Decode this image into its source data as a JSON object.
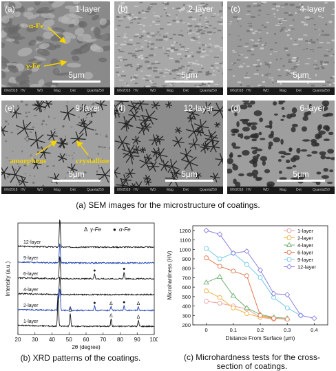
{
  "sem": {
    "panels": [
      {
        "tag": "(a)",
        "title": "1-layer",
        "scale": "5μm",
        "style": "cells"
      },
      {
        "tag": "(b)",
        "title": "2-layer",
        "scale": "5μm",
        "style": "fine"
      },
      {
        "tag": "(c)",
        "title": "4-layer",
        "scale": "5μm",
        "style": "smooth"
      },
      {
        "tag": "(e)",
        "title": "9-layer",
        "scale": "5μm",
        "style": "stars"
      },
      {
        "tag": "(f)",
        "title": "12-layer",
        "scale": "5μm",
        "style": "dendrite"
      },
      {
        "tag": "(d)",
        "title": "6-layer",
        "scale": "5μm",
        "style": "porous"
      }
    ],
    "annotations": {
      "alpha": "α-Fe",
      "gamma": "γ-Fe",
      "amorphous": "amorphous",
      "crystalline": "crystalline"
    },
    "infobar_text": [
      "0/6/2018",
      "HV",
      "WD",
      "Mag",
      "Det",
      "Quanta250"
    ],
    "caption": "(a) SEM images for the microstructure of coatings."
  },
  "captions": {
    "xrd": "(b) XRD patterns of the coatings.",
    "hv_line1": "(c) Microhardness tests for the cross-",
    "hv_line2": "section of coatings."
  },
  "chart_data": [
    {
      "type": "line",
      "xlabel": "2θ (degree)",
      "ylabel": "Intensity (a.u.)",
      "xlim": [
        20,
        100
      ],
      "xticks": [
        20,
        30,
        40,
        50,
        60,
        70,
        80,
        90,
        100
      ],
      "legend": [
        {
          "symbol": "Δ",
          "name": "γ-Fe"
        },
        {
          "symbol": "●",
          "name": "α-Fe"
        }
      ],
      "series": [
        {
          "name": "12-layer",
          "color": "#111111",
          "offset": 5,
          "peaks": [
            [
              44.6,
              2.0
            ]
          ],
          "markers": [
            {
              "x": 44.6,
              "sym": "●"
            }
          ]
        },
        {
          "name": "9-layer",
          "color": "#1a3fb0",
          "offset": 4,
          "peaks": [
            [
              44.6,
              1.4
            ]
          ],
          "markers": []
        },
        {
          "name": "6-layer",
          "color": "#111111",
          "offset": 3,
          "peaks": [
            [
              44.6,
              1.6
            ],
            [
              65.0,
              0.35
            ],
            [
              82.3,
              0.45
            ]
          ],
          "markers": [
            {
              "x": 65.0,
              "sym": "●"
            },
            {
              "x": 82.3,
              "sym": "●"
            }
          ]
        },
        {
          "name": "4-layer",
          "color": "#111111",
          "offset": 2,
          "peaks": [
            [
              44.6,
              1.3
            ]
          ],
          "markers": []
        },
        {
          "name": "2-layer",
          "color": "#1a3fb0",
          "offset": 1,
          "peaks": [
            [
              43.6,
              1.2
            ],
            [
              44.6,
              1.6
            ],
            [
              50.7,
              0.3
            ],
            [
              65.0,
              0.3
            ],
            [
              74.7,
              0.25
            ],
            [
              82.3,
              0.35
            ],
            [
              90.7,
              0.25
            ]
          ],
          "markers": [
            {
              "x": 65.0,
              "sym": "●"
            },
            {
              "x": 74.7,
              "sym": "Δ"
            },
            {
              "x": 82.3,
              "sym": "●"
            },
            {
              "x": 90.7,
              "sym": "Δ"
            }
          ]
        },
        {
          "name": "1-layer",
          "color": "#111111",
          "offset": 0,
          "peaks": [
            [
              43.6,
              2.2
            ],
            [
              50.7,
              0.9
            ],
            [
              74.7,
              0.5
            ],
            [
              90.7,
              0.4
            ]
          ],
          "markers": [
            {
              "x": 50.7,
              "sym": "Δ"
            },
            {
              "x": 74.7,
              "sym": "Δ"
            },
            {
              "x": 90.7,
              "sym": "Δ"
            }
          ]
        }
      ]
    },
    {
      "type": "line",
      "xlabel": "Distance From Surface (μm)",
      "ylabel": "Microhardness (HV)",
      "xlim": [
        -0.05,
        0.45
      ],
      "ylim": [
        200,
        1250
      ],
      "xticks": [
        0.0,
        0.1,
        0.2,
        0.3,
        0.4
      ],
      "yticks": [
        200,
        300,
        400,
        500,
        600,
        700,
        800,
        900,
        1000,
        1100,
        1200
      ],
      "legend_position": "top-right",
      "series": [
        {
          "name": "1-layer",
          "color": "#e8a0a0",
          "marker": "circle",
          "x": [
            0,
            0.05,
            0.1,
            0.15,
            0.2,
            0.25
          ],
          "y": [
            450,
            430,
            400,
            370,
            280,
            260
          ]
        },
        {
          "name": "2-layer",
          "color": "#f0b040",
          "marker": "circle",
          "x": [
            0,
            0.05,
            0.1,
            0.15,
            0.2,
            0.25
          ],
          "y": [
            560,
            490,
            380,
            320,
            280,
            270
          ]
        },
        {
          "name": "4-layer",
          "color": "#70b070",
          "marker": "triangle",
          "x": [
            0,
            0.05,
            0.1,
            0.15,
            0.2,
            0.25,
            0.3
          ],
          "y": [
            650,
            710,
            510,
            380,
            310,
            280,
            270
          ]
        },
        {
          "name": "6-layer",
          "color": "#e07850",
          "marker": "circle",
          "x": [
            0,
            0.05,
            0.1,
            0.15,
            0.2,
            0.25,
            0.3
          ],
          "y": [
            910,
            820,
            770,
            720,
            300,
            270,
            260
          ]
        },
        {
          "name": "9-layer",
          "color": "#70c8e8",
          "marker": "circle",
          "x": [
            0,
            0.05,
            0.1,
            0.15,
            0.2,
            0.25,
            0.3,
            0.35
          ],
          "y": [
            1010,
            900,
            960,
            840,
            700,
            490,
            380,
            300
          ]
        },
        {
          "name": "12-layer",
          "color": "#8a80e0",
          "marker": "diamond",
          "x": [
            0,
            0.05,
            0.1,
            0.15,
            0.2,
            0.25,
            0.3,
            0.35,
            0.4
          ],
          "y": [
            1200,
            1160,
            960,
            980,
            780,
            530,
            520,
            300,
            270
          ]
        }
      ]
    }
  ]
}
